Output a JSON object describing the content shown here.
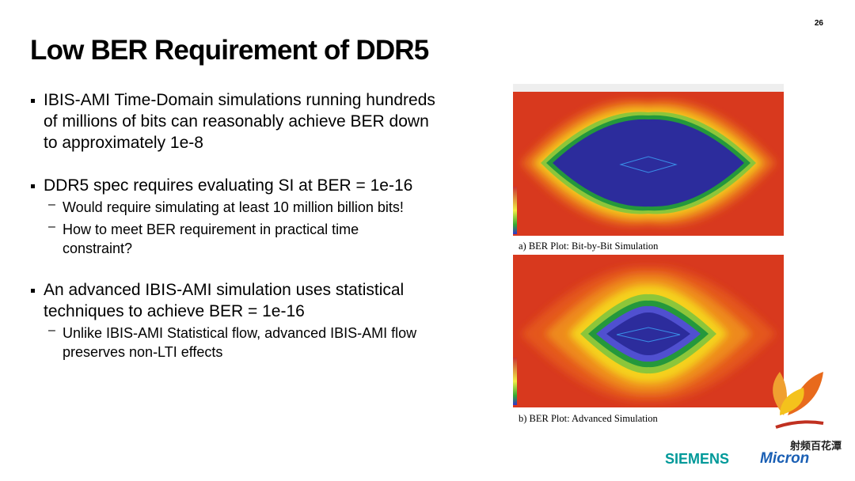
{
  "page_number": "26",
  "title": "Low BER Requirement of DDR5",
  "bullets": [
    {
      "text": "IBIS-AMI Time-Domain simulations running hundreds of millions of bits can reasonably achieve BER down to approximately 1e-8"
    },
    {
      "text": "DDR5 spec requires evaluating SI at BER = 1e-16",
      "sub": [
        "Would require simulating at least 10 million billion bits!",
        "How to meet BER requirement in practical time constraint?"
      ]
    },
    {
      "text": "An advanced IBIS-AMI simulation uses statistical techniques to achieve BER = 1e-16",
      "sub": [
        "Unlike IBIS-AMI Statistical flow, advanced IBIS-AMI flow preserves non-LTI effects"
      ]
    }
  ],
  "figures": [
    {
      "caption": "a) BER Plot: Bit-by-Bit Simulation"
    },
    {
      "caption": "b) BER Plot: Advanced Simulation"
    }
  ],
  "logos": {
    "siemens": "SIEMENS",
    "micron": "Micron",
    "watermark": "射频百花潭"
  }
}
